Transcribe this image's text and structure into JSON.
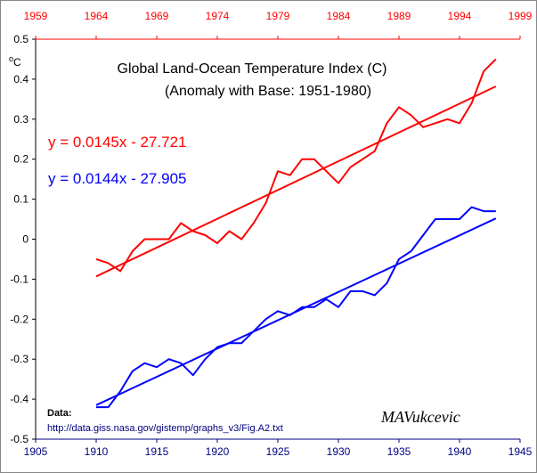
{
  "chart_data": {
    "type": "line",
    "title": "Global Land-Ocean Temperature Index (C)",
    "subtitle": "(Anomaly with Base: 1951-1980)",
    "ylabel": "oC",
    "xlim": [
      1905,
      1945
    ],
    "ylim": [
      -0.5,
      0.5
    ],
    "y_ticks": [
      "0.5",
      "0.4",
      "0.3",
      "0.2",
      "0.1",
      "0",
      "-0.1",
      "-0.2",
      "-0.3",
      "-0.4",
      "-0.5"
    ],
    "x_ticks_bottom": [
      "1905",
      "1910",
      "1915",
      "1920",
      "1925",
      "1930",
      "1935",
      "1940",
      "1945"
    ],
    "x_ticks_top": [
      "1959",
      "1964",
      "1969",
      "1974",
      "1979",
      "1984",
      "1989",
      "1994",
      "1999"
    ],
    "top_axis_offset_years": 54,
    "grid": false,
    "series": [
      {
        "color": "#ff0000",
        "axis": "top",
        "x": [
          1910,
          1911,
          1912,
          1913,
          1914,
          1915,
          1916,
          1917,
          1918,
          1919,
          1920,
          1921,
          1922,
          1923,
          1924,
          1925,
          1926,
          1927,
          1928,
          1929,
          1930,
          1931,
          1932,
          1933,
          1934,
          1935,
          1936,
          1937,
          1938,
          1939,
          1940,
          1941,
          1942,
          1943
        ],
        "values": [
          -0.05,
          -0.06,
          -0.08,
          -0.03,
          0.0,
          0.0,
          0.0,
          0.04,
          0.02,
          0.01,
          -0.01,
          0.02,
          0.0,
          0.04,
          0.09,
          0.17,
          0.16,
          0.2,
          0.2,
          0.17,
          0.14,
          0.18,
          0.2,
          0.22,
          0.29,
          0.33,
          0.31,
          0.28,
          0.29,
          0.3,
          0.29,
          0.34,
          0.42,
          0.45
        ]
      },
      {
        "color": "#ff0000",
        "axis": "top",
        "kind": "trend",
        "x": [
          1910,
          1943
        ],
        "values": [
          -0.093,
          0.382
        ]
      },
      {
        "color": "#0000ff",
        "axis": "bottom",
        "x": [
          1910,
          1911,
          1912,
          1913,
          1914,
          1915,
          1916,
          1917,
          1918,
          1919,
          1920,
          1921,
          1922,
          1923,
          1924,
          1925,
          1926,
          1927,
          1928,
          1929,
          1930,
          1931,
          1932,
          1933,
          1934,
          1935,
          1936,
          1937,
          1938,
          1939,
          1940,
          1941,
          1942,
          1943
        ],
        "values": [
          -0.42,
          -0.42,
          -0.38,
          -0.33,
          -0.31,
          -0.32,
          -0.3,
          -0.31,
          -0.34,
          -0.3,
          -0.27,
          -0.26,
          -0.26,
          -0.23,
          -0.2,
          -0.18,
          -0.19,
          -0.17,
          -0.17,
          -0.15,
          -0.17,
          -0.13,
          -0.13,
          -0.14,
          -0.11,
          -0.05,
          -0.03,
          0.01,
          0.05,
          0.05,
          0.05,
          0.08,
          0.07,
          0.07
        ]
      },
      {
        "color": "#0000ff",
        "axis": "bottom",
        "kind": "trend",
        "x": [
          1910,
          1943
        ],
        "values": [
          -0.415,
          0.052
        ]
      }
    ],
    "annotations": {
      "red_equation": "y = 0.0145x - 27.721",
      "blue_equation": "y = 0.0144x - 27.905",
      "data_label": "Data:",
      "data_source": "http://data.giss.nasa.gov/gistemp/graphs_v3/Fig.A2.txt",
      "signature": "MAVukcevic"
    },
    "colors": {
      "top_axis": "#ff0000",
      "bottom_axis": "#000080",
      "red_series": "#ff0000",
      "blue_series": "#0000ff"
    }
  }
}
